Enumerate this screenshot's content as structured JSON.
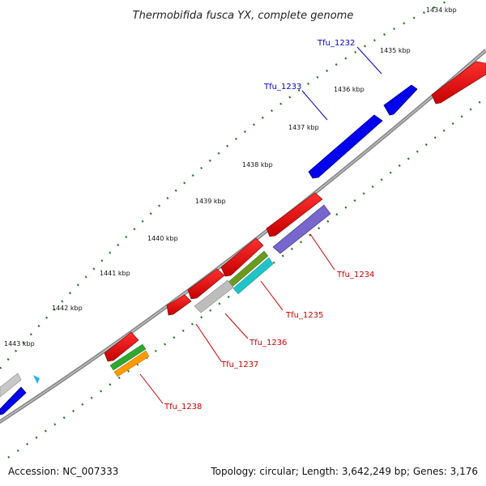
{
  "title": "Thermobifida fusca YX, complete genome",
  "footer": {
    "accession": "Accession: NC_007333",
    "summary": "Topology: circular; Length: 3,642,249 bp; Genes: 3,176"
  },
  "colors": {
    "forward_gene": "#0000ee",
    "reverse_gene": "#ee0000",
    "forward_label": "#0000cc",
    "reverse_label": "#cc0000",
    "backbone": "#888888",
    "ticks": "#1f7a1f"
  },
  "ticks": [
    "1434 kbp",
    "1435 kbp",
    "1436 kbp",
    "1437 kbp",
    "1438 kbp",
    "1439 kbp",
    "1440 kbp",
    "1441 kbp",
    "1442 kbp",
    "1443 kbp"
  ],
  "gene_labels": {
    "tfu_1232": "Tfu_1232",
    "tfu_1233": "Tfu_1233",
    "tfu_1234": "Tfu_1234",
    "tfu_1235": "Tfu_1235",
    "tfu_1236": "Tfu_1236",
    "tfu_1237": "Tfu_1237",
    "tfu_1238": "Tfu_1238"
  }
}
